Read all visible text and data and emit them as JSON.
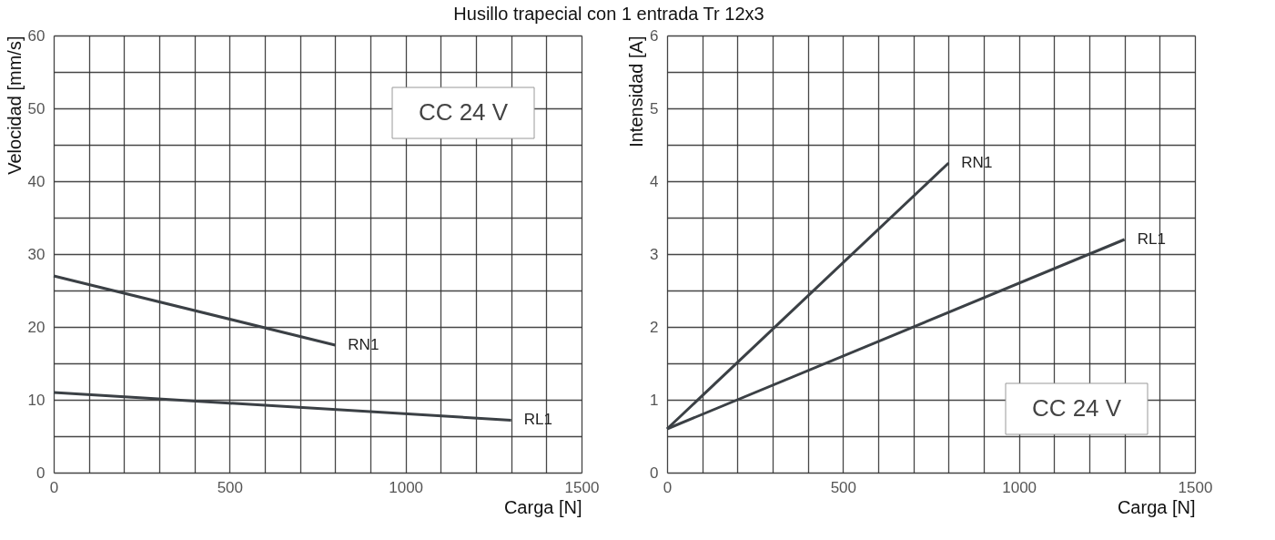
{
  "chart_data": [
    {
      "type": "line",
      "title": "Husillo trapecial con 1 entrada Tr 12x3",
      "xlabel": "Carga [N]",
      "ylabel": "Velocidad [mm/s]",
      "annotations": [
        "CC 24 V"
      ],
      "xlim": [
        0,
        1500
      ],
      "xticks": [
        0,
        {
          "value": 100,
          "label": null
        },
        {
          "value": 200,
          "label": null
        },
        {
          "value": 300,
          "label": null
        },
        {
          "value": 400,
          "label": null
        },
        500,
        {
          "value": 600,
          "label": null
        },
        {
          "value": 700,
          "label": null
        },
        {
          "value": 800,
          "label": null
        },
        {
          "value": 900,
          "label": null
        },
        1000,
        {
          "value": 1100,
          "label": null
        },
        {
          "value": 1200,
          "label": null
        },
        {
          "value": 1300,
          "label": null
        },
        {
          "value": 1400,
          "label": null
        },
        1500
      ],
      "ylim": [
        0,
        60
      ],
      "yticks": [
        0,
        {
          "value": 5,
          "label": null
        },
        10,
        {
          "value": 15,
          "label": null
        },
        20,
        {
          "value": 25,
          "label": null
        },
        30,
        {
          "value": 35,
          "label": null
        },
        40,
        {
          "value": 45,
          "label": null
        },
        50,
        {
          "value": 55,
          "label": null
        },
        60
      ],
      "grid": true,
      "legend": false,
      "series": [
        {
          "name": "RN1",
          "color": "#3b4045",
          "x": [
            0,
            800
          ],
          "values": [
            27,
            17.5
          ]
        },
        {
          "name": "RL1",
          "color": "#3b4045",
          "x": [
            0,
            1300
          ],
          "values": [
            11,
            7.2
          ]
        }
      ]
    },
    {
      "type": "line",
      "xlabel": "Carga [N]",
      "ylabel": "Intensidad [A]",
      "annotations": [
        "CC 24 V"
      ],
      "xlim": [
        0,
        1500
      ],
      "xticks": [
        0,
        {
          "value": 100,
          "label": null
        },
        {
          "value": 200,
          "label": null
        },
        {
          "value": 300,
          "label": null
        },
        {
          "value": 400,
          "label": null
        },
        500,
        {
          "value": 600,
          "label": null
        },
        {
          "value": 700,
          "label": null
        },
        {
          "value": 800,
          "label": null
        },
        {
          "value": 900,
          "label": null
        },
        1000,
        {
          "value": 1100,
          "label": null
        },
        {
          "value": 1200,
          "label": null
        },
        {
          "value": 1300,
          "label": null
        },
        {
          "value": 1400,
          "label": null
        },
        1500
      ],
      "ylim": [
        0,
        6
      ],
      "yticks": [
        0,
        {
          "value": 0.5,
          "label": null
        },
        1,
        {
          "value": 1.5,
          "label": null
        },
        2,
        {
          "value": 2.5,
          "label": null
        },
        3,
        {
          "value": 3.5,
          "label": null
        },
        4,
        {
          "value": 4.5,
          "label": null
        },
        5,
        {
          "value": 5.5,
          "label": null
        },
        6
      ],
      "grid": true,
      "legend": false,
      "series": [
        {
          "name": "RN1",
          "color": "#3b4045",
          "x": [
            0,
            800
          ],
          "values": [
            0.6,
            4.25
          ]
        },
        {
          "name": "RL1",
          "color": "#3b4045",
          "x": [
            0,
            1300
          ],
          "values": [
            0.6,
            3.2
          ]
        }
      ]
    }
  ]
}
